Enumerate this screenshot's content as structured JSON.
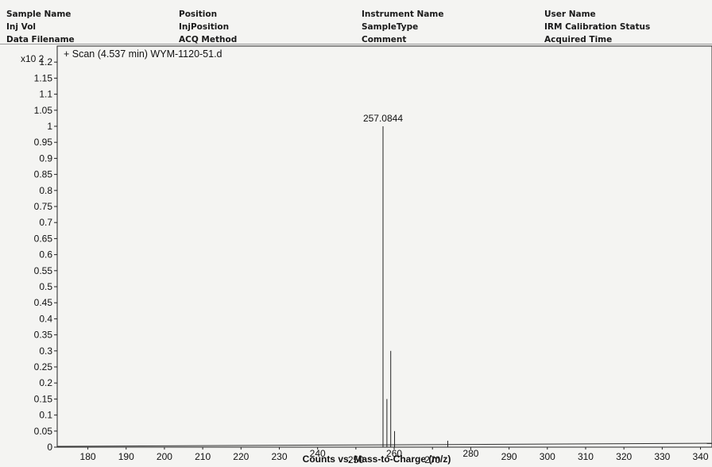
{
  "header": {
    "col1": [
      "Sample Name",
      "Inj Vol",
      "Data Filename"
    ],
    "col2": [
      "Position",
      "InjPosition",
      "ACQ Method"
    ],
    "col3": [
      "Instrument Name",
      "SampleType",
      "Comment"
    ],
    "col4": [
      "User Name",
      "IRM Calibration Status",
      "Acquired Time"
    ]
  },
  "chart_data": {
    "type": "line",
    "title": "+ Scan (4.537 min) WYM-1120-51.d",
    "xlabel": "Counts vs. Mass-to-Charge (m/z)",
    "ylabel": "",
    "y_multiplier": "x10 2",
    "x_ticks": [
      180,
      190,
      200,
      210,
      220,
      230,
      240,
      250,
      260,
      270,
      280,
      290,
      300,
      310,
      320,
      330,
      340
    ],
    "y_ticks": [
      "0",
      "0.05",
      "0.1",
      "0.15",
      "0.2",
      "0.25",
      "0.3",
      "0.35",
      "0.4",
      "0.45",
      "0.5",
      "0.55",
      "0.6",
      "0.65",
      "0.7",
      "0.75",
      "0.8",
      "0.85",
      "0.9",
      "0.95",
      "1",
      "1.05",
      "1.1",
      "1.15",
      "1.2"
    ],
    "xlim": [
      172,
      343
    ],
    "ylim": [
      0,
      1.25
    ],
    "peaks": [
      {
        "x": 257.0844,
        "y": 1.0,
        "label": "257.0844"
      },
      {
        "x": 258.1,
        "y": 0.15
      },
      {
        "x": 259.1,
        "y": 0.3
      },
      {
        "x": 260.1,
        "y": 0.05
      },
      {
        "x": 274.0,
        "y": 0.02
      }
    ],
    "grid": false,
    "legend": "none"
  }
}
